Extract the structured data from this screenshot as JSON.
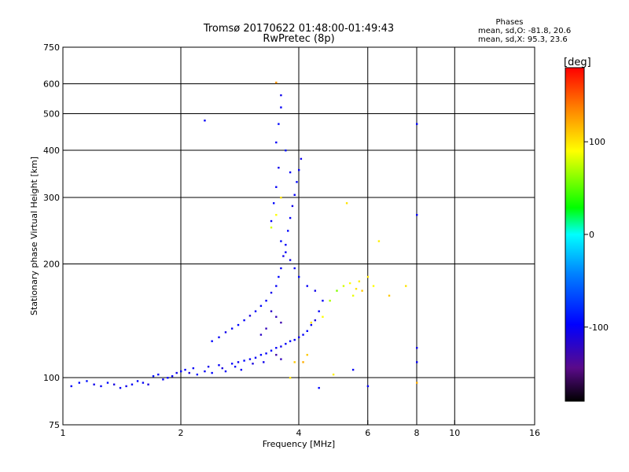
{
  "chart_data": {
    "type": "scatter",
    "title_line1": "Tromsø 20170622 01:48:00-01:49:43",
    "title_line2": "RwPretec (8p)",
    "xlabel": "Frequency [MHz]",
    "ylabel": "Stationary phase Virtual Height [km]",
    "xscale": "log",
    "yscale": "log",
    "xlim": [
      1,
      16
    ],
    "ylim": [
      75,
      750
    ],
    "xticks": [
      1,
      2,
      4,
      6,
      8,
      10,
      16
    ],
    "yticks": [
      75,
      100,
      200,
      300,
      400,
      500,
      600,
      750
    ],
    "grid": true,
    "stats": {
      "title": "Phases",
      "line_o": "mean, sd,O: -81.8, 20.6",
      "line_x": "mean, sd,X:  95.3, 23.6"
    },
    "colorbar": {
      "label": "[deg]",
      "range": [
        -180,
        180
      ],
      "ticks": [
        {
          "value": 100,
          "label": "100"
        },
        {
          "value": 0,
          "label": "0"
        },
        {
          "value": -100,
          "label": "-100"
        }
      ]
    },
    "series": [
      {
        "name": "Phase",
        "points": [
          [
            1.05,
            95,
            -100
          ],
          [
            1.1,
            97,
            -95
          ],
          [
            1.15,
            98,
            -90
          ],
          [
            1.2,
            96,
            -105
          ],
          [
            1.25,
            95,
            -100
          ],
          [
            1.3,
            97,
            -95
          ],
          [
            1.35,
            96,
            -110
          ],
          [
            1.4,
            94,
            -100
          ],
          [
            1.45,
            95,
            -105
          ],
          [
            1.5,
            96,
            -100
          ],
          [
            1.55,
            98,
            -95
          ],
          [
            1.6,
            97,
            -100
          ],
          [
            1.65,
            96,
            -110
          ],
          [
            1.7,
            101,
            -90
          ],
          [
            1.75,
            102,
            -95
          ],
          [
            1.8,
            99,
            -100
          ],
          [
            1.85,
            100,
            -95
          ],
          [
            1.9,
            101,
            -100
          ],
          [
            1.95,
            103,
            -105
          ],
          [
            2.0,
            104,
            -100
          ],
          [
            2.05,
            105,
            -95
          ],
          [
            2.1,
            103,
            -110
          ],
          [
            2.15,
            106,
            -100
          ],
          [
            2.2,
            102,
            -90
          ],
          [
            2.3,
            104,
            -100
          ],
          [
            2.35,
            107,
            -105
          ],
          [
            2.4,
            103,
            -95
          ],
          [
            2.5,
            108,
            -100
          ],
          [
            2.55,
            106,
            -110
          ],
          [
            2.6,
            104,
            -100
          ],
          [
            2.7,
            109,
            -95
          ],
          [
            2.75,
            107,
            -100
          ],
          [
            2.8,
            110,
            -105
          ],
          [
            2.85,
            105,
            -100
          ],
          [
            2.9,
            111,
            -95
          ],
          [
            3.0,
            112,
            -100
          ],
          [
            3.05,
            109,
            -110
          ],
          [
            3.1,
            113,
            -100
          ],
          [
            3.2,
            115,
            -95
          ],
          [
            3.25,
            110,
            -105
          ],
          [
            3.3,
            116,
            -100
          ],
          [
            3.4,
            118,
            -95
          ],
          [
            3.5,
            120,
            -100
          ],
          [
            3.6,
            121,
            -105
          ],
          [
            3.7,
            123,
            -100
          ],
          [
            3.8,
            125,
            -95
          ],
          [
            3.9,
            126,
            -100
          ],
          [
            4.0,
            128,
            -105
          ],
          [
            4.1,
            130,
            -100
          ],
          [
            4.2,
            133,
            -95
          ],
          [
            4.3,
            138,
            -100
          ],
          [
            4.4,
            142,
            -110
          ],
          [
            4.5,
            150,
            -100
          ],
          [
            2.4,
            125,
            -95
          ],
          [
            2.5,
            128,
            -100
          ],
          [
            2.6,
            132,
            -105
          ],
          [
            2.7,
            135,
            -100
          ],
          [
            2.8,
            138,
            -95
          ],
          [
            2.9,
            142,
            -100
          ],
          [
            3.0,
            146,
            -110
          ],
          [
            3.1,
            150,
            -100
          ],
          [
            3.2,
            155,
            -95
          ],
          [
            3.3,
            160,
            -100
          ],
          [
            3.4,
            168,
            -105
          ],
          [
            3.5,
            175,
            -100
          ],
          [
            3.55,
            185,
            -95
          ],
          [
            3.6,
            195,
            -100
          ],
          [
            3.65,
            210,
            -105
          ],
          [
            3.7,
            225,
            -100
          ],
          [
            3.75,
            245,
            -95
          ],
          [
            3.8,
            265,
            -100
          ],
          [
            3.85,
            285,
            -105
          ],
          [
            3.9,
            305,
            -100
          ],
          [
            3.95,
            330,
            -95
          ],
          [
            4.0,
            355,
            -100
          ],
          [
            4.05,
            380,
            -105
          ],
          [
            3.4,
            260,
            -100
          ],
          [
            3.45,
            290,
            -95
          ],
          [
            3.5,
            320,
            -100
          ],
          [
            3.55,
            360,
            -105
          ],
          [
            3.5,
            420,
            -100
          ],
          [
            3.55,
            470,
            -95
          ],
          [
            3.6,
            520,
            -100
          ],
          [
            3.6,
            560,
            -105
          ],
          [
            3.7,
            400,
            -90
          ],
          [
            3.8,
            350,
            -100
          ],
          [
            3.6,
            230,
            -95
          ],
          [
            3.7,
            215,
            -100
          ],
          [
            3.8,
            205,
            -105
          ],
          [
            3.9,
            195,
            -100
          ],
          [
            4.0,
            185,
            -95
          ],
          [
            4.2,
            175,
            -100
          ],
          [
            4.4,
            170,
            -105
          ],
          [
            4.6,
            160,
            -100
          ],
          [
            3.4,
            150,
            -120
          ],
          [
            3.5,
            145,
            -125
          ],
          [
            3.6,
            140,
            -130
          ],
          [
            3.3,
            135,
            -125
          ],
          [
            3.2,
            130,
            -120
          ],
          [
            3.5,
            115,
            -130
          ],
          [
            3.6,
            112,
            -125
          ],
          [
            4.1,
            110,
            120
          ],
          [
            4.2,
            115,
            110
          ],
          [
            4.3,
            140,
            100
          ],
          [
            4.6,
            145,
            90
          ],
          [
            4.8,
            160,
            70
          ],
          [
            5.0,
            170,
            60
          ],
          [
            5.2,
            175,
            80
          ],
          [
            5.4,
            178,
            90
          ],
          [
            5.6,
            172,
            100
          ],
          [
            5.8,
            170,
            110
          ],
          [
            5.5,
            165,
            85
          ],
          [
            5.7,
            180,
            95
          ],
          [
            6.0,
            185,
            100
          ],
          [
            6.2,
            175,
            90
          ],
          [
            5.3,
            290,
            100
          ],
          [
            6.4,
            230,
            95
          ],
          [
            3.5,
            605,
            130
          ],
          [
            3.6,
            300,
            100
          ],
          [
            3.5,
            270,
            90
          ],
          [
            3.4,
            250,
            80
          ],
          [
            8.0,
            270,
            -100
          ],
          [
            8.0,
            470,
            -95
          ],
          [
            8.0,
            110,
            -100
          ],
          [
            8.0,
            120,
            -105
          ],
          [
            8.0,
            97,
            120
          ],
          [
            6.0,
            95,
            -100
          ],
          [
            4.5,
            94,
            -95
          ],
          [
            2.3,
            480,
            -100
          ],
          [
            3.8,
            100,
            100
          ],
          [
            3.9,
            110,
            110
          ],
          [
            4.9,
            102,
            95
          ],
          [
            6.8,
            165,
            110
          ],
          [
            7.5,
            175,
            100
          ],
          [
            5.5,
            105,
            -100
          ]
        ]
      }
    ]
  }
}
